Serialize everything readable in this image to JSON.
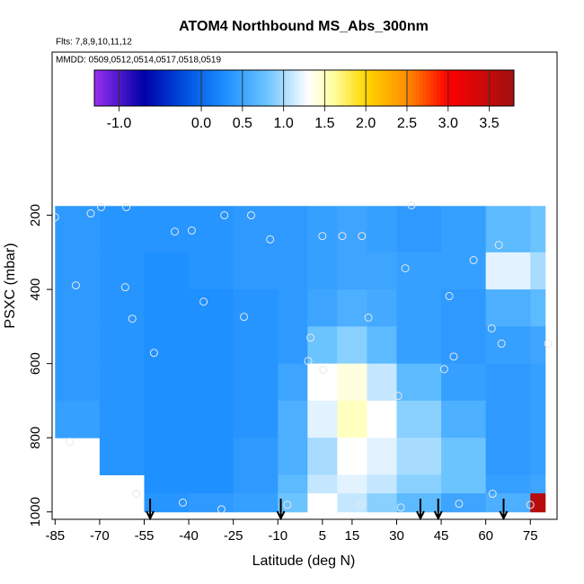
{
  "chart_data": {
    "type": "heatmap",
    "title": "ATOM4 Northbound MS_Abs_300nm",
    "subtitle": "Flts: 7,8,9,10,11,12",
    "annotation": "MMDD: 0509,0512,0514,0517,0518,0519",
    "xlabel": "Latitude (deg N)",
    "ylabel": "PSXC (mbar)",
    "xlim": [
      -86,
      84
    ],
    "ylim": [
      1020,
      -240
    ],
    "xticks": [
      -85,
      -70,
      -55,
      -40,
      -25,
      -10,
      5,
      15,
      30,
      45,
      60,
      75
    ],
    "yticks": [
      200,
      400,
      600,
      800,
      1000
    ],
    "x_edges": [
      -85,
      -70,
      -55,
      -40,
      -25,
      -10,
      0,
      10,
      20,
      30,
      45,
      60,
      75,
      80
    ],
    "y_edges": [
      175,
      300,
      400,
      500,
      600,
      700,
      800,
      900,
      950,
      1000
    ],
    "z": [
      [
        0.4,
        0.35,
        0.35,
        0.35,
        0.4,
        0.4,
        0.45,
        0.5,
        0.45,
        0.4,
        0.45,
        0.7,
        0.8
      ],
      [
        0.4,
        0.35,
        0.3,
        0.35,
        0.4,
        0.4,
        0.45,
        0.5,
        0.5,
        0.45,
        0.45,
        1.2,
        1.0
      ],
      [
        0.4,
        0.35,
        0.3,
        0.3,
        0.35,
        0.4,
        0.5,
        0.6,
        0.55,
        0.45,
        0.4,
        0.6,
        0.7
      ],
      [
        0.4,
        0.35,
        0.3,
        0.3,
        0.35,
        0.4,
        0.8,
        0.9,
        0.7,
        0.45,
        0.4,
        0.45,
        0.5
      ],
      [
        0.4,
        0.35,
        0.3,
        0.3,
        0.35,
        0.5,
        1.3,
        1.4,
        1.1,
        0.7,
        0.45,
        0.4,
        0.45
      ],
      [
        0.45,
        0.35,
        0.3,
        0.3,
        0.35,
        0.6,
        1.2,
        1.5,
        1.3,
        0.9,
        0.6,
        0.4,
        0.45
      ],
      [
        null,
        0.35,
        0.3,
        0.3,
        0.4,
        0.6,
        1.0,
        1.3,
        1.2,
        1.0,
        0.8,
        0.4,
        0.45
      ],
      [
        null,
        null,
        0.3,
        0.3,
        0.4,
        0.7,
        1.1,
        1.2,
        1.1,
        0.9,
        0.8,
        0.45,
        0.5
      ],
      [
        null,
        null,
        0.35,
        0.4,
        0.45,
        0.8,
        1.3,
        1.1,
        0.9,
        0.7,
        0.5,
        0.6,
        3.6
      ]
    ],
    "points": {
      "x": [
        -69.5,
        -61,
        -85,
        -73,
        -44.7,
        -39,
        -28,
        -19,
        -12.6,
        5,
        11.7,
        18.3,
        35,
        32.9,
        47.7,
        55.9,
        64.4,
        -61.4,
        -59,
        -35,
        -21.4,
        1,
        5.3,
        20.5,
        30.5,
        46,
        49.2,
        62,
        65.3,
        81,
        -57.7,
        -42,
        -29,
        -6.8,
        17.7,
        31.4,
        51,
        62.3,
        75,
        -80,
        -51.7,
        0.2,
        -78
      ],
      "y": [
        178,
        178,
        205,
        195,
        244,
        241,
        200,
        200,
        265,
        256,
        256,
        256,
        173,
        343,
        418,
        321,
        280,
        394,
        479,
        433,
        474,
        530,
        617,
        476,
        687,
        615,
        581,
        505,
        546,
        546,
        951,
        975,
        993,
        981,
        981,
        988,
        978,
        951,
        981,
        811,
        571,
        593,
        389
      ]
    },
    "arrows": [
      -53,
      -9,
      38,
      44,
      66
    ],
    "colorbar": {
      "lim": [
        -1.3,
        3.8
      ],
      "ticks": [
        {
          "value": -1,
          "label": "-1.0"
        },
        {
          "value": 0,
          "label": "0.0"
        },
        0.5,
        {
          "value": 1,
          "label": "1.0"
        },
        1.5,
        {
          "value": 2,
          "label": "2.0"
        },
        2.5,
        {
          "value": 3,
          "label": "3.0"
        },
        3.5
      ],
      "colorscale": [
        [
          -1.3,
          "#9a30f0"
        ],
        [
          -0.7,
          "#0000a8"
        ],
        [
          -0.2,
          "#0050e0"
        ],
        [
          0.3,
          "#1e90ff"
        ],
        [
          0.8,
          "#6cc4ff"
        ],
        [
          1.3,
          "#ffffff"
        ],
        [
          1.6,
          "#ffffa0"
        ],
        [
          2.0,
          "#ffd700"
        ],
        [
          2.5,
          "#ff8c00"
        ],
        [
          3.0,
          "#ff0000"
        ],
        [
          3.8,
          "#a01010"
        ]
      ]
    }
  }
}
